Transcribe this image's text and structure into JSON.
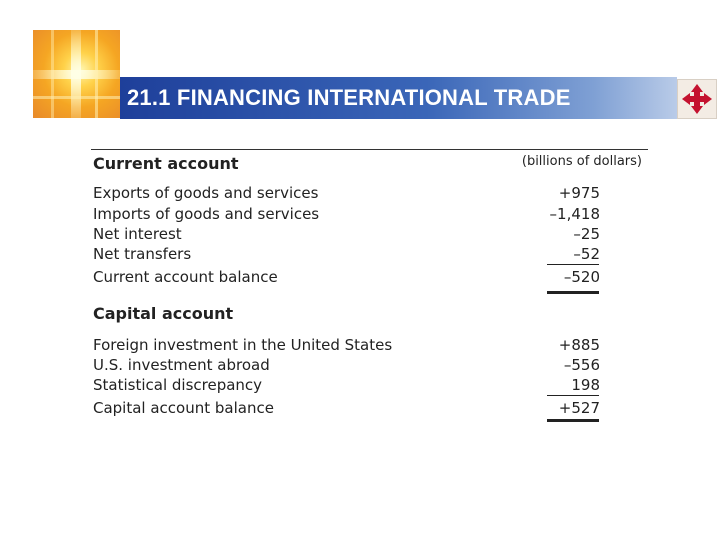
{
  "header": {
    "title": "21.1 FINANCING INTERNATIONAL TRADE",
    "logo_icon": "golden-cross-logo-icon",
    "nav_icon": "four-arrows-navigation-icon",
    "colors": {
      "title_bar": "#1e3f9a",
      "nav_arrows": "#c4122f"
    }
  },
  "table": {
    "current_account": {
      "heading": "Current account",
      "unit_label": "(billions of dollars)",
      "rows": [
        {
          "label": "Exports of goods and services",
          "value": "+975"
        },
        {
          "label": "Imports of goods and services",
          "value": "–1,418"
        },
        {
          "label": "Net interest",
          "value": "–25"
        },
        {
          "label": "Net transfers",
          "value": "–52"
        },
        {
          "label": "Current account balance",
          "value": "–520"
        }
      ]
    },
    "capital_account": {
      "heading": "Capital account",
      "rows": [
        {
          "label": "Foreign investment in the United States",
          "value": "+885"
        },
        {
          "label": "U.S. investment abroad",
          "value": "–556"
        },
        {
          "label": "Statistical discrepancy",
          "value": "198"
        },
        {
          "label": "Capital account balance",
          "value": "+527"
        }
      ]
    }
  }
}
